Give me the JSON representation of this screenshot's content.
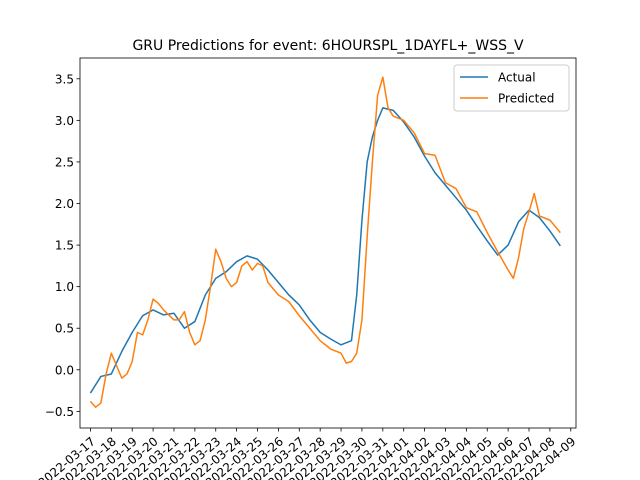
{
  "chart_data": {
    "type": "line",
    "title": "GRU Predictions for event: 6HOURSPL_1DAYFL+_WSS_V",
    "xlabel": "",
    "ylabel": "",
    "x_ticks": [
      "2022-03-17",
      "2022-03-18",
      "2022-03-19",
      "2022-03-20",
      "2022-03-21",
      "2022-03-22",
      "2022-03-23",
      "2022-03-24",
      "2022-03-25",
      "2022-03-26",
      "2022-03-27",
      "2022-03-28",
      "2022-03-29",
      "2022-03-30",
      "2022-03-31",
      "2022-04-01",
      "2022-04-02",
      "2022-04-03",
      "2022-04-04",
      "2022-04-05",
      "2022-04-06",
      "2022-04-07",
      "2022-04-08",
      "2022-04-09"
    ],
    "y_ticks": [
      -0.5,
      0.0,
      0.5,
      1.0,
      1.5,
      2.0,
      2.5,
      3.0,
      3.5
    ],
    "xlim": [
      "2022-03-16 12:00",
      "2022-04-09 06:00"
    ],
    "ylim": [
      -0.7,
      3.75
    ],
    "grid": false,
    "legend": "top-right",
    "series": [
      {
        "name": "Actual",
        "color": "#1f77b4",
        "points": [
          [
            "2022-03-17 00:00",
            -0.28
          ],
          [
            "2022-03-17 12:00",
            -0.08
          ],
          [
            "2022-03-18 00:00",
            -0.05
          ],
          [
            "2022-03-18 12:00",
            0.22
          ],
          [
            "2022-03-19 00:00",
            0.45
          ],
          [
            "2022-03-19 12:00",
            0.65
          ],
          [
            "2022-03-20 00:00",
            0.72
          ],
          [
            "2022-03-20 12:00",
            0.66
          ],
          [
            "2022-03-21 00:00",
            0.68
          ],
          [
            "2022-03-21 12:00",
            0.5
          ],
          [
            "2022-03-22 00:00",
            0.58
          ],
          [
            "2022-03-22 12:00",
            0.9
          ],
          [
            "2022-03-23 00:00",
            1.1
          ],
          [
            "2022-03-23 12:00",
            1.18
          ],
          [
            "2022-03-24 00:00",
            1.3
          ],
          [
            "2022-03-24 12:00",
            1.37
          ],
          [
            "2022-03-25 00:00",
            1.33
          ],
          [
            "2022-03-25 12:00",
            1.2
          ],
          [
            "2022-03-26 00:00",
            1.05
          ],
          [
            "2022-03-26 12:00",
            0.9
          ],
          [
            "2022-03-27 00:00",
            0.78
          ],
          [
            "2022-03-27 12:00",
            0.6
          ],
          [
            "2022-03-28 00:00",
            0.45
          ],
          [
            "2022-03-28 12:00",
            0.37
          ],
          [
            "2022-03-29 00:00",
            0.3
          ],
          [
            "2022-03-29 12:00",
            0.35
          ],
          [
            "2022-03-29 18:00",
            0.9
          ],
          [
            "2022-03-30 00:00",
            1.8
          ],
          [
            "2022-03-30 06:00",
            2.5
          ],
          [
            "2022-03-30 12:00",
            2.8
          ],
          [
            "2022-03-30 18:00",
            3.0
          ],
          [
            "2022-03-31 00:00",
            3.15
          ],
          [
            "2022-03-31 12:00",
            3.12
          ],
          [
            "2022-04-01 00:00",
            2.98
          ],
          [
            "2022-04-01 12:00",
            2.8
          ],
          [
            "2022-04-02 00:00",
            2.57
          ],
          [
            "2022-04-02 12:00",
            2.37
          ],
          [
            "2022-04-03 00:00",
            2.22
          ],
          [
            "2022-04-03 12:00",
            2.07
          ],
          [
            "2022-04-04 00:00",
            1.92
          ],
          [
            "2022-04-04 12:00",
            1.73
          ],
          [
            "2022-04-05 00:00",
            1.55
          ],
          [
            "2022-04-05 12:00",
            1.38
          ],
          [
            "2022-04-06 00:00",
            1.5
          ],
          [
            "2022-04-06 12:00",
            1.78
          ],
          [
            "2022-04-07 00:00",
            1.92
          ],
          [
            "2022-04-07 12:00",
            1.83
          ],
          [
            "2022-04-08 00:00",
            1.67
          ],
          [
            "2022-04-08 12:00",
            1.49
          ]
        ]
      },
      {
        "name": "Predicted",
        "color": "#ff7f0e",
        "points": [
          [
            "2022-03-17 00:00",
            -0.38
          ],
          [
            "2022-03-17 06:00",
            -0.45
          ],
          [
            "2022-03-17 12:00",
            -0.4
          ],
          [
            "2022-03-17 18:00",
            -0.05
          ],
          [
            "2022-03-18 00:00",
            0.2
          ],
          [
            "2022-03-18 06:00",
            0.05
          ],
          [
            "2022-03-18 12:00",
            -0.1
          ],
          [
            "2022-03-18 18:00",
            -0.05
          ],
          [
            "2022-03-19 00:00",
            0.1
          ],
          [
            "2022-03-19 06:00",
            0.45
          ],
          [
            "2022-03-19 12:00",
            0.42
          ],
          [
            "2022-03-19 18:00",
            0.6
          ],
          [
            "2022-03-20 00:00",
            0.85
          ],
          [
            "2022-03-20 06:00",
            0.8
          ],
          [
            "2022-03-20 12:00",
            0.72
          ],
          [
            "2022-03-21 00:00",
            0.6
          ],
          [
            "2022-03-21 06:00",
            0.6
          ],
          [
            "2022-03-21 12:00",
            0.7
          ],
          [
            "2022-03-21 18:00",
            0.45
          ],
          [
            "2022-03-22 00:00",
            0.3
          ],
          [
            "2022-03-22 06:00",
            0.35
          ],
          [
            "2022-03-22 12:00",
            0.6
          ],
          [
            "2022-03-22 18:00",
            1.0
          ],
          [
            "2022-03-23 00:00",
            1.45
          ],
          [
            "2022-03-23 06:00",
            1.3
          ],
          [
            "2022-03-23 12:00",
            1.1
          ],
          [
            "2022-03-23 18:00",
            1.0
          ],
          [
            "2022-03-24 00:00",
            1.05
          ],
          [
            "2022-03-24 06:00",
            1.25
          ],
          [
            "2022-03-24 12:00",
            1.3
          ],
          [
            "2022-03-24 18:00",
            1.2
          ],
          [
            "2022-03-25 00:00",
            1.28
          ],
          [
            "2022-03-25 06:00",
            1.25
          ],
          [
            "2022-03-25 12:00",
            1.05
          ],
          [
            "2022-03-26 00:00",
            0.9
          ],
          [
            "2022-03-26 12:00",
            0.82
          ],
          [
            "2022-03-27 00:00",
            0.65
          ],
          [
            "2022-03-27 12:00",
            0.5
          ],
          [
            "2022-03-28 00:00",
            0.35
          ],
          [
            "2022-03-28 12:00",
            0.25
          ],
          [
            "2022-03-29 00:00",
            0.2
          ],
          [
            "2022-03-29 06:00",
            0.08
          ],
          [
            "2022-03-29 12:00",
            0.1
          ],
          [
            "2022-03-29 18:00",
            0.2
          ],
          [
            "2022-03-30 00:00",
            0.6
          ],
          [
            "2022-03-30 06:00",
            1.6
          ],
          [
            "2022-03-30 12:00",
            2.5
          ],
          [
            "2022-03-30 18:00",
            3.3
          ],
          [
            "2022-03-31 00:00",
            3.52
          ],
          [
            "2022-03-31 06:00",
            3.15
          ],
          [
            "2022-03-31 12:00",
            3.05
          ],
          [
            "2022-04-01 00:00",
            3.0
          ],
          [
            "2022-04-01 12:00",
            2.85
          ],
          [
            "2022-04-02 00:00",
            2.6
          ],
          [
            "2022-04-02 12:00",
            2.58
          ],
          [
            "2022-04-03 00:00",
            2.25
          ],
          [
            "2022-04-03 12:00",
            2.18
          ],
          [
            "2022-04-04 00:00",
            1.95
          ],
          [
            "2022-04-04 12:00",
            1.9
          ],
          [
            "2022-04-05 00:00",
            1.65
          ],
          [
            "2022-04-05 12:00",
            1.42
          ],
          [
            "2022-04-06 00:00",
            1.2
          ],
          [
            "2022-04-06 06:00",
            1.1
          ],
          [
            "2022-04-06 12:00",
            1.35
          ],
          [
            "2022-04-06 18:00",
            1.7
          ],
          [
            "2022-04-07 00:00",
            1.9
          ],
          [
            "2022-04-07 06:00",
            2.12
          ],
          [
            "2022-04-07 12:00",
            1.85
          ],
          [
            "2022-04-08 00:00",
            1.8
          ],
          [
            "2022-04-08 12:00",
            1.65
          ]
        ]
      }
    ]
  }
}
